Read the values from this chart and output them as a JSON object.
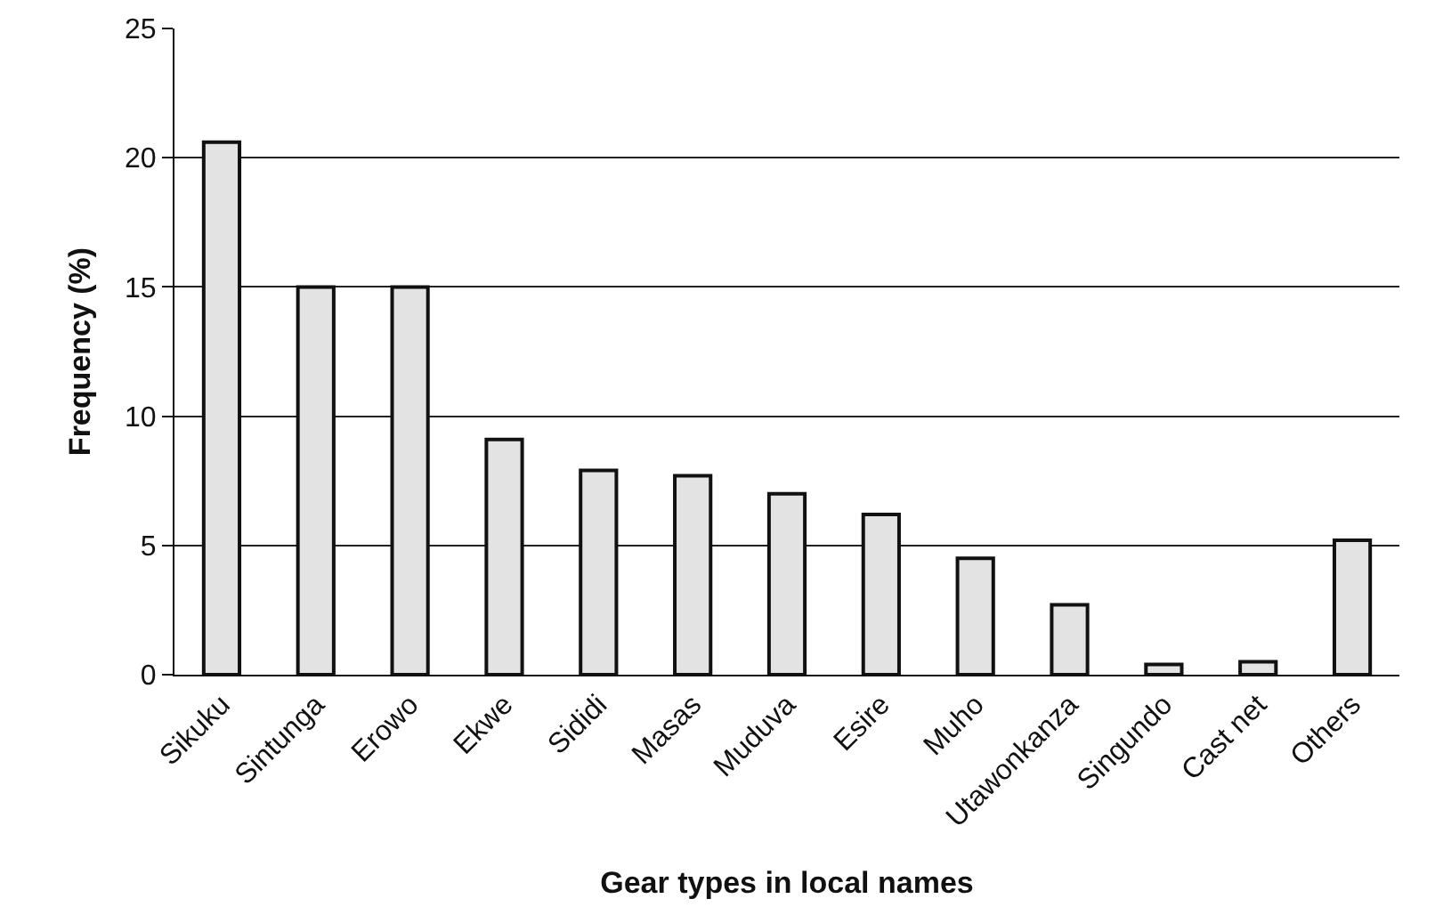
{
  "chart_data": {
    "type": "bar",
    "xlabel": "Gear types in local names",
    "ylabel": "Frequency (%)",
    "categories": [
      "Sikuku",
      "Sintunga",
      "Erowo",
      "Ekwe",
      "Sididi",
      "Masas",
      "Muduva",
      "Esire",
      "Muho",
      "Utawonkanza",
      "Singundo",
      "Cast net",
      "Others"
    ],
    "values": [
      20.6,
      15,
      15,
      9.1,
      7.9,
      7.7,
      7.0,
      6.2,
      4.5,
      2.7,
      0.4,
      0.5,
      5.2
    ],
    "color": "#e3e3e3",
    "ylim": [
      0,
      25
    ],
    "yticks": [
      0,
      5,
      10,
      15,
      20,
      25
    ],
    "grid": "y"
  }
}
